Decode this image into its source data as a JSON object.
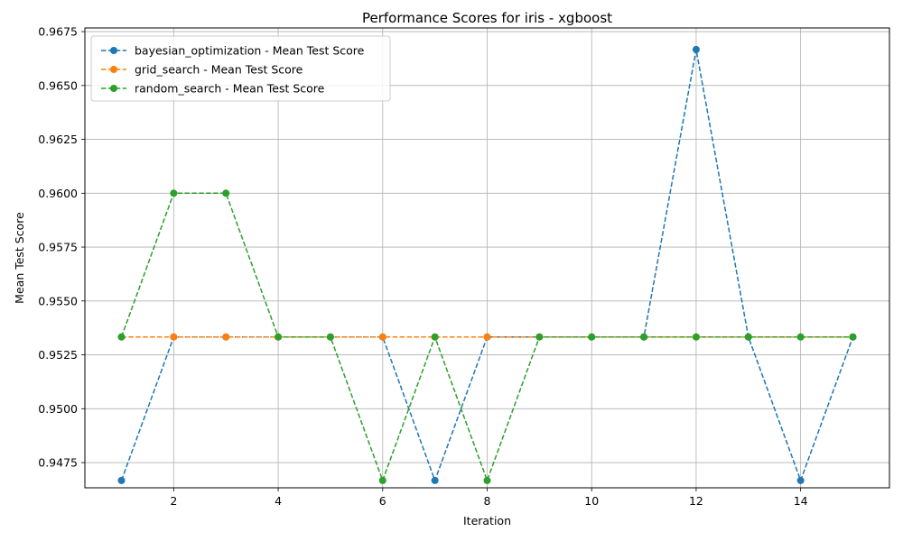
{
  "chart_data": {
    "type": "line",
    "title": "Performance Scores for iris - xgboost",
    "xlabel": "Iteration",
    "ylabel": "Mean Test Score",
    "xlim": [
      0.3,
      15.7
    ],
    "ylim": [
      0.94633,
      0.96767
    ],
    "x_ticks": [
      2,
      4,
      6,
      8,
      10,
      12,
      14
    ],
    "y_ticks": [
      0.9475,
      0.95,
      0.9525,
      0.955,
      0.9575,
      0.96,
      0.9625,
      0.965,
      0.9675
    ],
    "x_tick_labels": [
      "2",
      "4",
      "6",
      "8",
      "10",
      "12",
      "14"
    ],
    "y_tick_labels": [
      "0.9475",
      "0.9500",
      "0.9525",
      "0.9550",
      "0.9575",
      "0.9600",
      "0.9625",
      "0.9650",
      "0.9675"
    ],
    "grid": true,
    "legend_position": "top-left",
    "x": [
      1,
      2,
      3,
      4,
      5,
      6,
      7,
      8,
      9,
      10,
      11,
      12,
      13,
      14,
      15
    ],
    "series": [
      {
        "name": "bayesian_optimization - Mean Test Score",
        "color": "#1f77b4",
        "values": [
          0.94667,
          0.95333,
          0.95333,
          0.95333,
          0.95333,
          0.95333,
          0.94667,
          0.95333,
          0.95333,
          0.95333,
          0.95333,
          0.96667,
          0.95333,
          0.94667,
          0.95333
        ]
      },
      {
        "name": "grid_search - Mean Test Score",
        "color": "#ff7f0e",
        "values": [
          0.95333,
          0.95333,
          0.95333,
          0.95333,
          0.95333,
          0.95333,
          0.95333,
          0.95333,
          0.95333,
          0.95333,
          0.95333,
          0.95333,
          0.95333,
          0.95333,
          0.95333
        ]
      },
      {
        "name": "random_search - Mean Test Score",
        "color": "#2ca02c",
        "values": [
          0.95333,
          0.96,
          0.96,
          0.95333,
          0.95333,
          0.94667,
          0.95333,
          0.94667,
          0.95333,
          0.95333,
          0.95333,
          0.95333,
          0.95333,
          0.95333,
          0.95333
        ]
      }
    ]
  }
}
